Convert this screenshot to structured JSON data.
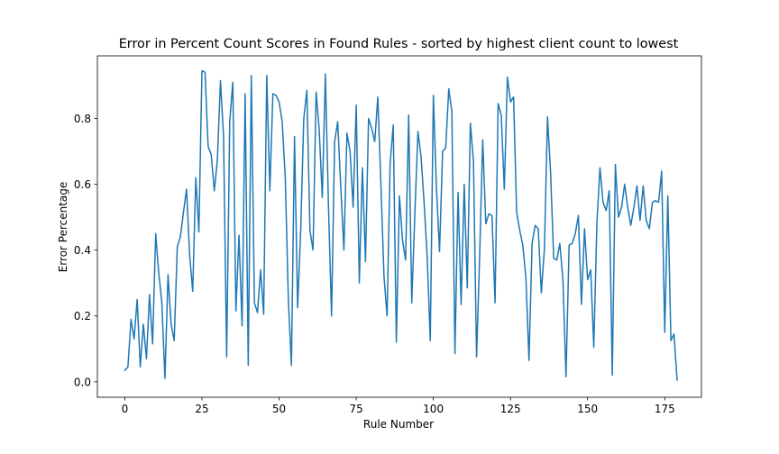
{
  "chart_data": {
    "type": "line",
    "title": "Error in Percent Count Scores in Found Rules - sorted by highest client count to lowest",
    "xlabel": "Rule Number",
    "ylabel": "Error Percentage",
    "xlim": [
      -8.9,
      186.9
    ],
    "ylim": [
      -0.047,
      0.99
    ],
    "xticks": [
      0,
      25,
      50,
      75,
      100,
      125,
      150,
      175
    ],
    "yticks": [
      0.0,
      0.2,
      0.4,
      0.6,
      0.8
    ],
    "ytick_labels": [
      "0.0",
      "0.2",
      "0.4",
      "0.6",
      "0.8"
    ],
    "grid": false,
    "color": "#1f77b4",
    "series": [
      {
        "x_start": 0,
        "x_step": 1,
        "values": [
          0.035,
          0.045,
          0.19,
          0.13,
          0.25,
          0.045,
          0.175,
          0.07,
          0.265,
          0.115,
          0.45,
          0.33,
          0.24,
          0.01,
          0.325,
          0.175,
          0.125,
          0.41,
          0.44,
          0.515,
          0.585,
          0.385,
          0.275,
          0.62,
          0.455,
          0.945,
          0.94,
          0.715,
          0.69,
          0.58,
          0.675,
          0.915,
          0.745,
          0.075,
          0.79,
          0.91,
          0.215,
          0.445,
          0.17,
          0.875,
          0.05,
          0.93,
          0.24,
          0.21,
          0.34,
          0.205,
          0.93,
          0.58,
          0.875,
          0.87,
          0.85,
          0.79,
          0.62,
          0.25,
          0.05,
          0.745,
          0.225,
          0.46,
          0.8,
          0.885,
          0.46,
          0.4,
          0.88,
          0.765,
          0.56,
          0.935,
          0.535,
          0.2,
          0.73,
          0.79,
          0.59,
          0.4,
          0.755,
          0.7,
          0.53,
          0.84,
          0.3,
          0.65,
          0.365,
          0.8,
          0.77,
          0.73,
          0.865,
          0.6,
          0.32,
          0.2,
          0.665,
          0.78,
          0.12,
          0.565,
          0.43,
          0.37,
          0.81,
          0.24,
          0.51,
          0.76,
          0.685,
          0.545,
          0.38,
          0.125,
          0.87,
          0.59,
          0.395,
          0.7,
          0.71,
          0.89,
          0.82,
          0.085,
          0.575,
          0.235,
          0.6,
          0.285,
          0.785,
          0.67,
          0.075,
          0.38,
          0.735,
          0.48,
          0.51,
          0.505,
          0.24,
          0.845,
          0.81,
          0.585,
          0.925,
          0.85,
          0.865,
          0.515,
          0.46,
          0.415,
          0.315,
          0.065,
          0.42,
          0.475,
          0.465,
          0.27,
          0.405,
          0.805,
          0.635,
          0.375,
          0.37,
          0.42,
          0.31,
          0.015,
          0.415,
          0.42,
          0.45,
          0.505,
          0.235,
          0.465,
          0.31,
          0.34,
          0.105,
          0.48,
          0.65,
          0.545,
          0.52,
          0.58,
          0.02,
          0.66,
          0.5,
          0.53,
          0.6,
          0.53,
          0.475,
          0.53,
          0.595,
          0.49,
          0.595,
          0.49,
          0.465,
          0.545,
          0.55,
          0.545,
          0.64,
          0.15,
          0.565,
          0.125,
          0.145,
          0.005
        ]
      }
    ]
  }
}
